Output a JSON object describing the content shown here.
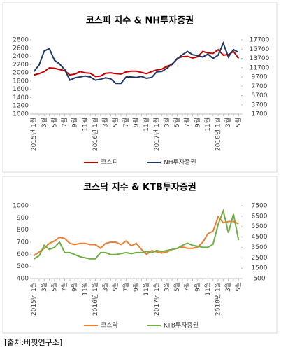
{
  "chart_data": [
    {
      "type": "line",
      "title": "코스피 지수 & NH투자증권",
      "categories": [
        "2015년 1월",
        null,
        "3월",
        null,
        "5월",
        null,
        "7월",
        null,
        "9월",
        null,
        "11월",
        null,
        "2016년 1월",
        null,
        "3월",
        null,
        "5월",
        null,
        "7월",
        null,
        "9월",
        null,
        "11월",
        null,
        "2017년 1월",
        null,
        "3월",
        null,
        "5월",
        null,
        "7월",
        null,
        "9월",
        null,
        "11월",
        null,
        "2018년 1월",
        null,
        "3월",
        null,
        "5월"
      ],
      "series": [
        {
          "name": "코스피",
          "color": "#c00000",
          "values": [
            1950,
            1980,
            2030,
            2120,
            2110,
            2080,
            2050,
            1950,
            1970,
            2030,
            2000,
            1990,
            1910,
            1920,
            1990,
            2000,
            1980,
            1970,
            2020,
            2040,
            2040,
            2010,
            1980,
            2030,
            2070,
            2090,
            2160,
            2200,
            2350,
            2390,
            2400,
            2360,
            2390,
            2520,
            2480,
            2470,
            2560,
            2430,
            2440,
            2520,
            2350
          ]
        },
        {
          "name": "NH투자증권",
          "color": "#1f3864",
          "axis": "y2",
          "values": [
            10900,
            12300,
            15300,
            15800,
            13300,
            12500,
            11300,
            9000,
            9500,
            9700,
            9900,
            9700,
            9000,
            9200,
            9500,
            9300,
            8300,
            8300,
            9700,
            9700,
            9600,
            9800,
            9400,
            9600,
            10800,
            10900,
            11600,
            12500,
            13600,
            14500,
            15200,
            14500,
            14300,
            14000,
            14600,
            13700,
            14400,
            17000,
            14000,
            15600,
            15000
          ]
        }
      ],
      "ylim": [
        1000,
        2800
      ],
      "yticks": [
        1000,
        1200,
        1400,
        1600,
        1800,
        2000,
        2200,
        2400,
        2600,
        2800
      ],
      "y2lim": [
        1700,
        17700
      ],
      "y2ticks": [
        1700,
        3700,
        5700,
        7700,
        9700,
        11700,
        13700,
        15700,
        17700
      ],
      "legend": "bottom"
    },
    {
      "type": "line",
      "title": "코스닥 지수 & KTB투자증권",
      "categories": [
        "2015년 1월",
        null,
        "3월",
        null,
        "5월",
        null,
        "7월",
        null,
        "9월",
        null,
        "11월",
        null,
        "2016년 1월",
        null,
        "3월",
        null,
        "5월",
        null,
        "7월",
        null,
        "9월",
        null,
        "11월",
        null,
        "2017년 1월",
        null,
        "3월",
        null,
        "5월",
        null,
        "7월",
        null,
        "9월",
        null,
        "11월",
        null,
        "2018년 1월",
        null,
        "3월",
        null,
        "5월"
      ],
      "series": [
        {
          "name": "코스닥",
          "color": "#ed7d31",
          "values": [
            590,
            620,
            650,
            690,
            710,
            740,
            730,
            690,
            680,
            690,
            690,
            680,
            680,
            650,
            690,
            700,
            700,
            680,
            710,
            670,
            690,
            640,
            600,
            630,
            620,
            610,
            620,
            640,
            650,
            660,
            650,
            650,
            660,
            700,
            770,
            790,
            910,
            860,
            870,
            870,
            850
          ]
        },
        {
          "name": "KTB투자증권",
          "color": "#70ad47",
          "axis": "y2",
          "values": [
            2400,
            2700,
            3700,
            3300,
            3500,
            4000,
            3000,
            3000,
            2800,
            2600,
            2500,
            2400,
            2400,
            3000,
            3000,
            2800,
            2800,
            2900,
            3000,
            2900,
            3000,
            3000,
            3100,
            3000,
            3200,
            3100,
            3200,
            3300,
            3400,
            3700,
            3900,
            3700,
            3600,
            3500,
            3500,
            3800,
            5700,
            7000,
            4900,
            6700,
            4200
          ]
        }
      ],
      "ylim": [
        400,
        1000
      ],
      "yticks": [
        400,
        500,
        600,
        700,
        800,
        900,
        1000
      ],
      "y2lim": [
        500,
        7500
      ],
      "y2ticks": [
        500,
        1500,
        2500,
        3500,
        4500,
        5500,
        6500,
        7500
      ],
      "legend": "bottom"
    }
  ],
  "source": "[출처:버핏연구소]"
}
